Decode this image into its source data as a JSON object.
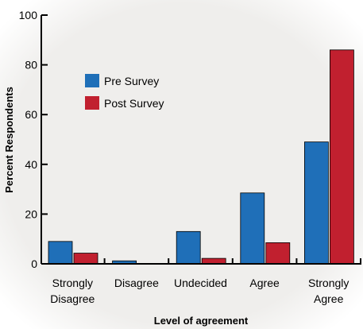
{
  "chart_data": {
    "type": "bar",
    "categories": [
      "Strongly Disagree",
      "Disagree",
      "Undecided",
      "Agree",
      "Strongly Agree"
    ],
    "category_labels": [
      [
        "Strongly",
        "Disagree"
      ],
      [
        "Disagree"
      ],
      [
        "Undecided"
      ],
      [
        "Agree"
      ],
      [
        "Strongly",
        "Agree"
      ]
    ],
    "series": [
      {
        "name": "Pre Survey",
        "color": "#1f6fb8",
        "values": [
          9,
          1.2,
          13,
          28.5,
          49
        ]
      },
      {
        "name": "Post Survey",
        "color": "#c1202f",
        "values": [
          4.3,
          0,
          2.2,
          8.5,
          86
        ]
      }
    ],
    "xlabel": "Level of agreement",
    "ylabel": "Percent Respondents",
    "ylim": [
      0,
      100
    ],
    "yticks": [
      0,
      20,
      40,
      60,
      80,
      100
    ],
    "legend_position": "upper-left",
    "grid": false,
    "background": "#efeeec"
  }
}
